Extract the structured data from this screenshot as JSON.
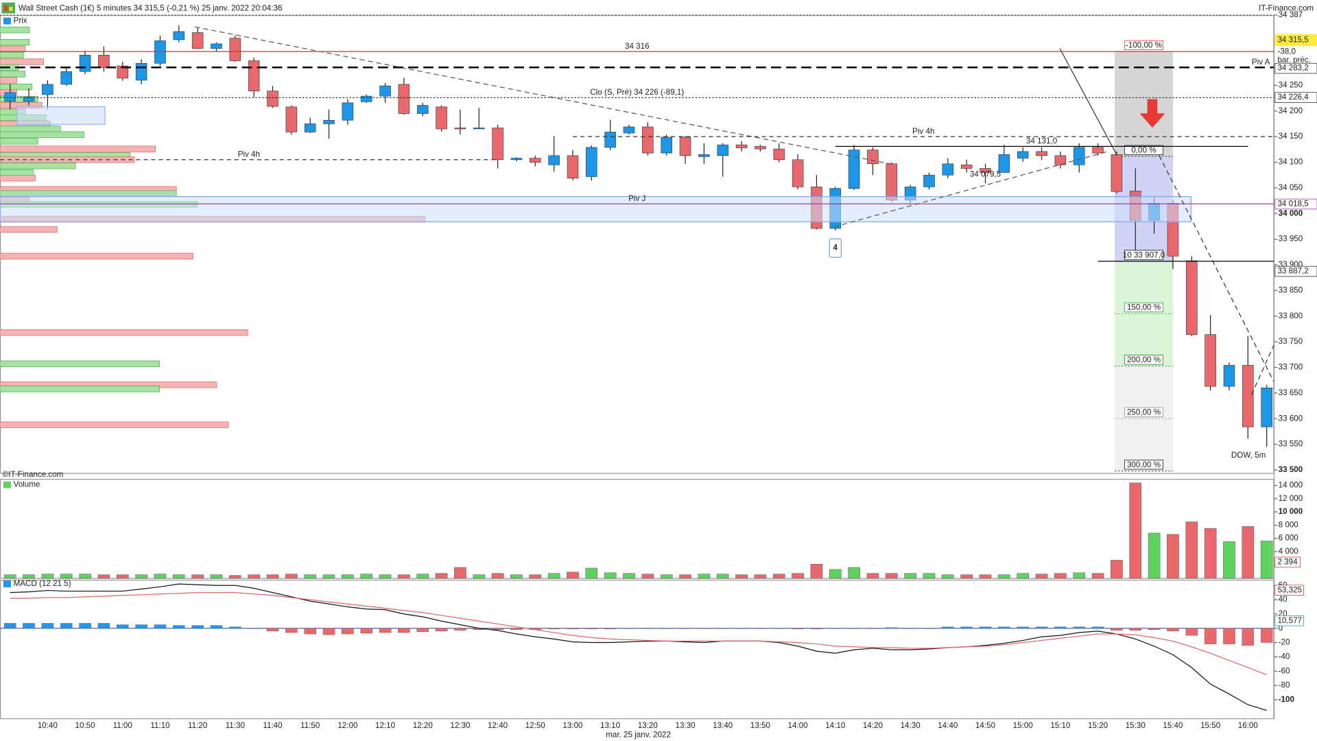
{
  "header": {
    "title": "Wall Street Cash (1€) 5 minutes 34 315,5 (-0,21 %) 25 janv. 2022 20:04:36",
    "brand": "IT-Finance.com"
  },
  "chart_data": [
    {
      "type": "candlestick",
      "legend": "Prix",
      "source": "©IT-Finance.com",
      "watermark": "DOW, 5m",
      "x_caption": "mar. 25 janv. 2022",
      "categories": [
        null,
        null,
        "10:40",
        null,
        "10:50",
        null,
        "11:00",
        null,
        "11:10",
        null,
        "11:20",
        null,
        "11:30",
        null,
        "11:40",
        null,
        "11:50",
        null,
        "12:00",
        null,
        "12:10",
        null,
        "12:20",
        null,
        "12:30",
        null,
        "12:40",
        null,
        "12:50",
        null,
        "13:00",
        null,
        "13:10",
        null,
        "13:20",
        null,
        "13:30",
        null,
        "13:40",
        null,
        "13:50",
        null,
        "14:00",
        null,
        "14:10",
        null,
        "14:20",
        null,
        "14:30",
        null,
        "14:40",
        null,
        "14:50",
        null,
        "15:00",
        null,
        "15:10",
        null,
        "15:20",
        null,
        "15:30",
        null,
        "15:40",
        null,
        "15:50",
        null,
        "16:00",
        null
      ],
      "open": [
        34219,
        34219,
        34232,
        34252,
        34277,
        34309,
        34288,
        34260,
        34293,
        34339,
        34353,
        34322,
        34342,
        34298,
        34239,
        34208,
        34159,
        34175,
        34182,
        34218,
        34229,
        34252,
        34195,
        34208,
        34167,
        34167,
        34167,
        34105,
        34108,
        34095,
        34113,
        34072,
        34129,
        34157,
        34169,
        34118,
        34149,
        34111,
        34113,
        34134,
        34131,
        34126,
        34105,
        34052,
        33971,
        34049,
        34124,
        34097,
        34026,
        34052,
        34075,
        34095,
        34088,
        34080,
        34108,
        34121,
        34113,
        34095,
        34129,
        34115,
        34044,
        33987,
        34020,
        33908,
        33764,
        33663,
        33704,
        33584
      ],
      "high": [
        34252,
        34244,
        34260,
        34285,
        34318,
        34326,
        34296,
        34301,
        34347,
        34367,
        34363,
        34334,
        34347,
        34304,
        34249,
        34211,
        34187,
        34203,
        34223,
        34232,
        34255,
        34265,
        34216,
        34211,
        34203,
        34206,
        34173,
        34110,
        34113,
        34151,
        34124,
        34133,
        34183,
        34173,
        34178,
        34154,
        34151,
        34137,
        34137,
        34141,
        34134,
        34137,
        34116,
        34075,
        34052,
        34134,
        34129,
        34100,
        34056,
        34080,
        34108,
        34105,
        34097,
        34134,
        34129,
        34129,
        34121,
        34137,
        34137,
        34121,
        34088,
        34031,
        34026,
        33917,
        33802,
        33709,
        33761,
        33666
      ],
      "low": [
        34203,
        34211,
        34203,
        34249,
        34272,
        34277,
        34259,
        34252,
        34288,
        34334,
        34321,
        34317,
        34296,
        34227,
        34206,
        34154,
        34157,
        34146,
        34173,
        34216,
        34216,
        34193,
        34190,
        34160,
        34154,
        34165,
        34088,
        34102,
        34092,
        34082,
        34065,
        34064,
        34124,
        34154,
        34113,
        34113,
        34097,
        34097,
        34072,
        34121,
        34121,
        34100,
        34047,
        33969,
        33967,
        34046,
        34075,
        34023,
        34018,
        34047,
        34069,
        34080,
        34059,
        34080,
        34101,
        34105,
        34088,
        34080,
        34113,
        34039,
        33925,
        33961,
        33892,
        33761,
        33655,
        33655,
        33561,
        33545
      ],
      "close": [
        34236,
        34227,
        34252,
        34277,
        34309,
        34285,
        34264,
        34293,
        34337,
        34355,
        34322,
        34331,
        34298,
        34239,
        34209,
        34159,
        34175,
        34182,
        34216,
        34229,
        34249,
        34195,
        34211,
        34165,
        34165,
        34167,
        34105,
        34108,
        34100,
        34113,
        34069,
        34129,
        34159,
        34169,
        34118,
        34149,
        34113,
        34115,
        34134,
        34128,
        34126,
        34105,
        34052,
        33971,
        34049,
        34124,
        34097,
        34026,
        34052,
        34075,
        34097,
        34088,
        34080,
        34115,
        34121,
        34113,
        34095,
        34129,
        34118,
        34043,
        33987,
        34020,
        33917,
        33764,
        33663,
        33704,
        33584,
        33660
      ],
      "up_color": "#1e96e8",
      "down_color": "#e8686c",
      "ylim": [
        33494,
        34387
      ],
      "yticks": [
        {
          "value": 33500,
          "label": "33 500",
          "bold": true
        },
        {
          "value": 33550,
          "label": "33 550"
        },
        {
          "value": 33600,
          "label": "33 600"
        },
        {
          "value": 33650,
          "label": "33 650"
        },
        {
          "value": 33700,
          "label": "33 700"
        },
        {
          "value": 33750,
          "label": "33 750"
        },
        {
          "value": 33800,
          "label": "33 800"
        },
        {
          "value": 33850,
          "label": "33 850"
        },
        {
          "value": 33900,
          "label": "33 900"
        },
        {
          "value": 33950,
          "label": "33 950"
        },
        {
          "value": 34000,
          "label": "34 000",
          "bold": true
        },
        {
          "value": 34050,
          "label": "34 050"
        },
        {
          "value": 34100,
          "label": "34 100"
        },
        {
          "value": 34150,
          "label": "34 150"
        },
        {
          "value": 34200,
          "label": "34 200"
        },
        {
          "value": 34250,
          "label": "34 250"
        },
        {
          "value": 34387,
          "label": "34 387"
        }
      ],
      "grid": false,
      "last_price": {
        "value": 34315.5,
        "label": "34 315,5",
        "change": "-38,0",
        "note": "bar. préc."
      },
      "axis_labels": [
        {
          "value": 34283.2,
          "label": "34 283,2",
          "color": "#222"
        },
        {
          "value": 34226.4,
          "label": "34 226,4",
          "color": "#222"
        },
        {
          "value": 34018.5,
          "label": "34 018,5",
          "color": "#9c27b0"
        },
        {
          "value": 33887.2,
          "label": "33 887,2",
          "color": "#222"
        }
      ],
      "levels": [
        {
          "value": 34387,
          "color": "#555",
          "style": "dotted"
        },
        {
          "value": 34316,
          "label": "34 316",
          "color": "#d32f2f",
          "style": "solid"
        },
        {
          "value": 34285,
          "label": "Piv A",
          "color": "#000",
          "style": "longdash",
          "label_at": "right"
        },
        {
          "value": 34226,
          "label": "Clo (S, Pré) 34 226 (-89,1)",
          "color": "#333",
          "style": "dotted"
        },
        {
          "value": 34150,
          "label": "Piv 4h",
          "color": "#333",
          "style": "dashed",
          "from": "13:00"
        },
        {
          "value": 34105,
          "label": "Piv 4h",
          "color": "#333",
          "style": "dashed",
          "to": "12:40"
        },
        {
          "value": 34131,
          "label": "34 131,0",
          "color": "#000",
          "style": "solid",
          "from": "14:10",
          "to": "16:00"
        },
        {
          "value": 34019,
          "label": "Piv J",
          "color": "#9c27b0",
          "style": "solid"
        },
        {
          "value": 33907,
          "color": "#000",
          "style": "solid",
          "from": "15:20"
        }
      ],
      "fibonacci": {
        "from": "15:20",
        "to": "15:40",
        "levels": [
          {
            "value": 34316,
            "label": "-100,00 %",
            "color": "#d32f2f",
            "fill": "#cfcfcf"
          },
          {
            "value": 34111.5,
            "label": "0,00 %",
            "color": "#000",
            "fill": "#c8cbf5"
          },
          {
            "value": 33907,
            "label": "10 33 907,0",
            "color": "#000",
            "fill": "#d5f3d5"
          },
          {
            "value": 33804.75,
            "label": "150,00 %",
            "color": "#2e9d2e",
            "fill": "#d5f3d5"
          },
          {
            "value": 33702.5,
            "label": "200,00 %",
            "color": "#1b6e1b",
            "fill": "#eeeeee"
          },
          {
            "value": 33600.25,
            "label": "250,00 %",
            "color": "#888",
            "fill": "#eeeeee"
          },
          {
            "value": 33498,
            "label": "300,00 %",
            "color": "#000"
          }
        ]
      },
      "annotations": [
        {
          "value": 34079.5,
          "label": "34 079,5",
          "at": "14:50"
        },
        {
          "value": 33967,
          "label": "4",
          "at": "14:10"
        }
      ],
      "volume_profile": {
        "prices": [
          34358,
          34334,
          34321,
          34309,
          34296,
          34285,
          34272,
          34260,
          34247,
          34236,
          34223,
          34211,
          34198,
          34187,
          34175,
          34165,
          34154,
          34141,
          34126,
          34113,
          34105,
          34093,
          34080,
          34069,
          34047,
          34039,
          34026,
          34018,
          33989,
          33969,
          33917,
          33768,
          33707,
          33666,
          33658,
          33588
        ],
        "values": [
          35,
          35,
          30,
          28,
          52,
          22,
          30,
          20,
          38,
          20,
          45,
          50,
          30,
          55,
          60,
          72,
          100,
          45,
          185,
          155,
          160,
          90,
          40,
          42,
          210,
          210,
          35,
          235,
          506,
          68,
          230,
          295,
          190,
          258,
          190,
          272
        ],
        "colors": [
          "#a6e3a1",
          "#a6e3a1",
          "#f4b4b4",
          "#a6e3a1",
          "#f4b4b4",
          "#a6e3a1",
          "#a6e3a1",
          "#f4b4b4",
          "#a6e3a1",
          "#f4b4b4",
          "#a6e3a1",
          "#f4b4b4",
          "#a6e3a1",
          "#a6e3a1",
          "#f4b4b4",
          "#a6e3a1",
          "#a6e3a1",
          "#a6e3a1",
          "#f4b4b4",
          "#a6e3a1",
          "#f4b4b4",
          "#a6e3a1",
          "#a6e3a1",
          "#f4b4b4",
          "#f4b4b4",
          "#a6e3a1",
          "#f4b4b4",
          "#a6e3a1",
          "#f4b4b4",
          "#f4b4b4",
          "#f4b4b4",
          "#f4b4b4",
          "#a6e3a1",
          "#f4b4b4",
          "#a6e3a1",
          "#f4b4b4"
        ]
      }
    },
    {
      "type": "bar",
      "legend": "Volume",
      "values": [
        500,
        500,
        600,
        600,
        600,
        500,
        500,
        500,
        600,
        500,
        500,
        500,
        400,
        500,
        500,
        600,
        500,
        500,
        500,
        600,
        500,
        500,
        600,
        700,
        1600,
        500,
        700,
        500,
        500,
        700,
        900,
        1500,
        800,
        700,
        600,
        500,
        500,
        600,
        600,
        500,
        500,
        600,
        700,
        2100,
        1300,
        1600,
        700,
        700,
        700,
        700,
        500,
        500,
        500,
        500,
        700,
        600,
        700,
        800,
        700,
        2700,
        14400,
        6800,
        6600,
        8500,
        7500,
        5500,
        7800,
        5600
      ],
      "up_color": "#5fd35f",
      "down_color": "#e8686c",
      "ylim": [
        0,
        15000
      ],
      "yticks": [
        {
          "value": 2000,
          "label": "2 000"
        },
        {
          "value": 4000,
          "label": "4 000"
        },
        {
          "value": 6000,
          "label": "6 000"
        },
        {
          "value": 8000,
          "label": "8 000"
        },
        {
          "value": 10000,
          "label": "10 000",
          "bold": true
        },
        {
          "value": 12000,
          "label": "12 000"
        },
        {
          "value": 14000,
          "label": "14 000"
        }
      ],
      "value_label": {
        "value": 2394,
        "label": "2 394"
      }
    },
    {
      "type": "macd",
      "legend": "MACD (12 21 5)",
      "lines": [
        {
          "color": "#111",
          "values": [
            50,
            51,
            53,
            52,
            52,
            52,
            52,
            55,
            58,
            62,
            61,
            60,
            60,
            56,
            50,
            44,
            38,
            34,
            30,
            27,
            26,
            20,
            16,
            10,
            5,
            0,
            -3,
            -8,
            -12,
            -15,
            -19,
            -20,
            -20,
            -19,
            -18,
            -18,
            -19,
            -20,
            -18,
            -18,
            -18,
            -20,
            -25,
            -32,
            -35,
            -30,
            -28,
            -30,
            -30,
            -29,
            -27,
            -26,
            -24,
            -21,
            -17,
            -12,
            -10,
            -6,
            -4,
            -8,
            -15,
            -25,
            -37,
            -55,
            -78,
            -92,
            -107,
            -115
          ]
        },
        {
          "color": "#e06666",
          "values": [
            42,
            42,
            43,
            43,
            44,
            45,
            46,
            47,
            48,
            49,
            50,
            50,
            50,
            48,
            46,
            43,
            40,
            37,
            34,
            31,
            28,
            25,
            22,
            18,
            14,
            10,
            6,
            2,
            -2,
            -6,
            -10,
            -13,
            -15,
            -16,
            -17,
            -18,
            -18,
            -18,
            -18,
            -18,
            -18,
            -19,
            -20,
            -22,
            -25,
            -26,
            -27,
            -27,
            -28,
            -28,
            -27,
            -26,
            -25,
            -23,
            -20,
            -17,
            -14,
            -11,
            -8,
            -8,
            -9,
            -13,
            -18,
            -26,
            -35,
            -45,
            -55,
            -65
          ]
        }
      ],
      "histogram": {
        "values": [
          7,
          7,
          7,
          7,
          7,
          7,
          5,
          5,
          5,
          4,
          4,
          4,
          2,
          0,
          -4,
          -6,
          -8,
          -9,
          -8,
          -7,
          -6,
          -6,
          -5,
          -4,
          -3,
          -2,
          -2,
          -2,
          -2,
          -1,
          -1,
          -1,
          -1,
          0,
          0,
          0,
          0,
          0,
          0,
          0,
          0,
          0,
          -1,
          -1,
          0,
          0,
          0,
          1,
          0,
          0,
          2,
          2,
          2,
          2,
          2,
          2,
          2,
          2,
          2,
          -3,
          -3,
          -2,
          -4,
          -10,
          -22,
          -22,
          -24,
          -20
        ],
        "up_color": "#2196f3",
        "down_color": "#e8686c"
      },
      "ylim": [
        -126,
        68
      ],
      "yticks": [
        60,
        40,
        20,
        0,
        -20,
        -40,
        -60,
        -80,
        {
          "value": -100,
          "label": "-100",
          "bold": true
        }
      ],
      "value_labels": [
        {
          "value": 53.325,
          "label": "53,325",
          "color": "#d32f2f"
        },
        {
          "value": 10.577,
          "label": "10,577",
          "color": "#1e88e5"
        }
      ]
    }
  ]
}
